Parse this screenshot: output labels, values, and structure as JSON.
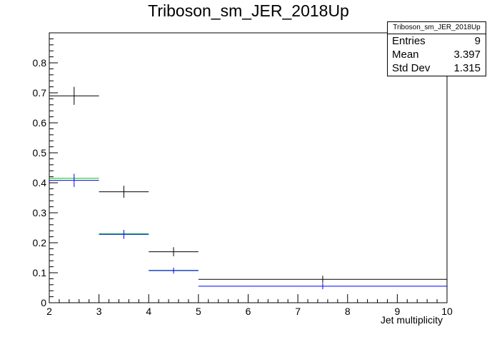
{
  "chart_data": {
    "type": "scatter",
    "title": "Triboson_sm_JER_2018Up",
    "xlabel": "Jet multiplicity",
    "ylabel": "",
    "xlim": [
      2,
      10
    ],
    "ylim": [
      0,
      0.9
    ],
    "x_ticks": [
      "2",
      "3",
      "4",
      "5",
      "6",
      "7",
      "8",
      "9",
      "10"
    ],
    "y_ticks": [
      "0",
      "0.1",
      "0.2",
      "0.3",
      "0.4",
      "0.5",
      "0.6",
      "0.7",
      "0.8"
    ],
    "grid": false,
    "series": [
      {
        "color": "#000000",
        "points": [
          {
            "xlo": 2,
            "xhi": 3,
            "y": 0.69,
            "err": 0.03
          },
          {
            "xlo": 3,
            "xhi": 4,
            "y": 0.37,
            "err": 0.02
          },
          {
            "xlo": 4,
            "xhi": 5,
            "y": 0.17,
            "err": 0.015
          },
          {
            "xlo": 5,
            "xhi": 10,
            "y": 0.078,
            "err": 0.012
          }
        ]
      },
      {
        "color": "#00cc00",
        "points": [
          {
            "xlo": 2,
            "xhi": 3,
            "y": 0.415,
            "err": 0.0
          },
          {
            "xlo": 3,
            "xhi": 4,
            "y": 0.23,
            "err": 0.0
          },
          {
            "xlo": 4,
            "xhi": 5,
            "y": 0.108,
            "err": 0.0
          }
        ]
      },
      {
        "color": "#0000ff",
        "points": [
          {
            "xlo": 2,
            "xhi": 3,
            "y": 0.408,
            "err": 0.022
          },
          {
            "xlo": 3,
            "xhi": 4,
            "y": 0.228,
            "err": 0.015
          },
          {
            "xlo": 4,
            "xhi": 5,
            "y": 0.107,
            "err": 0.01
          },
          {
            "xlo": 5,
            "xhi": 10,
            "y": 0.055,
            "err": 0.01
          }
        ]
      }
    ]
  },
  "stats_box": {
    "title": "Triboson_sm_JER_2018Up",
    "rows": [
      {
        "label": "Entries",
        "value": "9"
      },
      {
        "label": "Mean",
        "value": "3.397"
      },
      {
        "label": "Std Dev",
        "value": "1.315"
      }
    ]
  }
}
